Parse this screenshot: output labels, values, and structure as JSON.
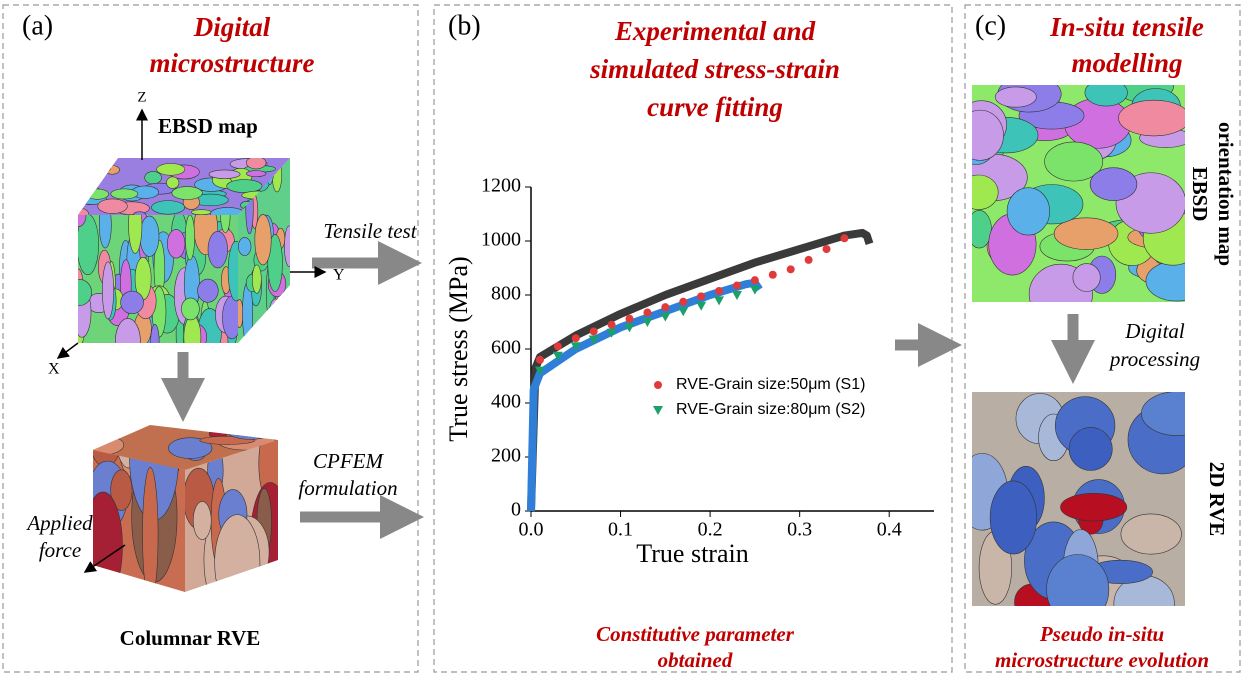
{
  "panels": [
    {
      "label": "(a)",
      "title": [
        "Digital",
        "microstructure"
      ],
      "map_label": "EBSD map",
      "axes": [
        "Z",
        "Y",
        "X"
      ],
      "force_label": [
        "Applied",
        "force"
      ],
      "caption": "Columnar RVE"
    },
    {
      "label": "(b)",
      "title": [
        "Experimental and",
        "simulated stress-strain",
        "curve fitting"
      ],
      "caption": [
        "Constitutive parameter",
        "obtained"
      ]
    },
    {
      "label": "(c)",
      "title": [
        "In-situ tensile",
        "modelling"
      ],
      "map_label": [
        "EBSD",
        "orientation map"
      ],
      "process_label": [
        "Digital",
        "processing"
      ],
      "rve_label": "2D RVE",
      "caption": [
        "Pseudo in-situ",
        "microstructure evolution"
      ]
    }
  ],
  "arrows": {
    "tensile": "Tensile test",
    "cpfem": [
      "CPFEM",
      "formulation"
    ]
  },
  "chart_data": {
    "type": "scatter",
    "xlabel": "True strain",
    "ylabel": "True stress (MPa)",
    "xlim": [
      0,
      0.45
    ],
    "ylim": [
      0,
      1200
    ],
    "xticks": [
      {
        "value": 0,
        "label": "0.0"
      },
      0.1,
      0.2,
      0.3,
      0.4
    ],
    "yticks": [
      0,
      200,
      400,
      600,
      800,
      1000,
      1200
    ],
    "series": [
      {
        "color": "#3a3a3a",
        "marker": "line",
        "x": [
          0,
          0.005,
          0.01,
          0.05,
          0.1,
          0.15,
          0.2,
          0.25,
          0.3,
          0.35,
          0.37,
          0.375,
          0.378
        ],
        "values": [
          0,
          530,
          570,
          650,
          730,
          800,
          860,
          920,
          970,
          1020,
          1030,
          1020,
          990
        ]
      },
      {
        "color": "#2f7fd8",
        "marker": "line",
        "x": [
          0,
          0.003,
          0.01,
          0.05,
          0.1,
          0.15,
          0.2,
          0.24,
          0.25,
          0.255
        ],
        "values": [
          0,
          450,
          510,
          600,
          680,
          740,
          800,
          840,
          845,
          820
        ]
      },
      {
        "name": "RVE-Grain size:50μm (S1)",
        "color": "#e03a3a",
        "marker": "circle",
        "x": [
          0.01,
          0.03,
          0.05,
          0.07,
          0.09,
          0.11,
          0.13,
          0.15,
          0.17,
          0.19,
          0.21,
          0.23,
          0.25,
          0.27,
          0.29,
          0.31,
          0.33,
          0.35
        ],
        "values": [
          560,
          610,
          640,
          665,
          690,
          712,
          735,
          755,
          775,
          795,
          815,
          835,
          855,
          875,
          895,
          930,
          970,
          1010
        ]
      },
      {
        "name": "RVE-Grain size:80μm (S2)",
        "color": "#1aa06a",
        "marker": "triangle",
        "x": [
          0.01,
          0.03,
          0.05,
          0.07,
          0.09,
          0.11,
          0.13,
          0.15,
          0.17,
          0.19,
          0.21,
          0.23,
          0.25
        ],
        "values": [
          520,
          575,
          610,
          635,
          660,
          680,
          700,
          720,
          740,
          760,
          780,
          800,
          820
        ]
      }
    ]
  }
}
